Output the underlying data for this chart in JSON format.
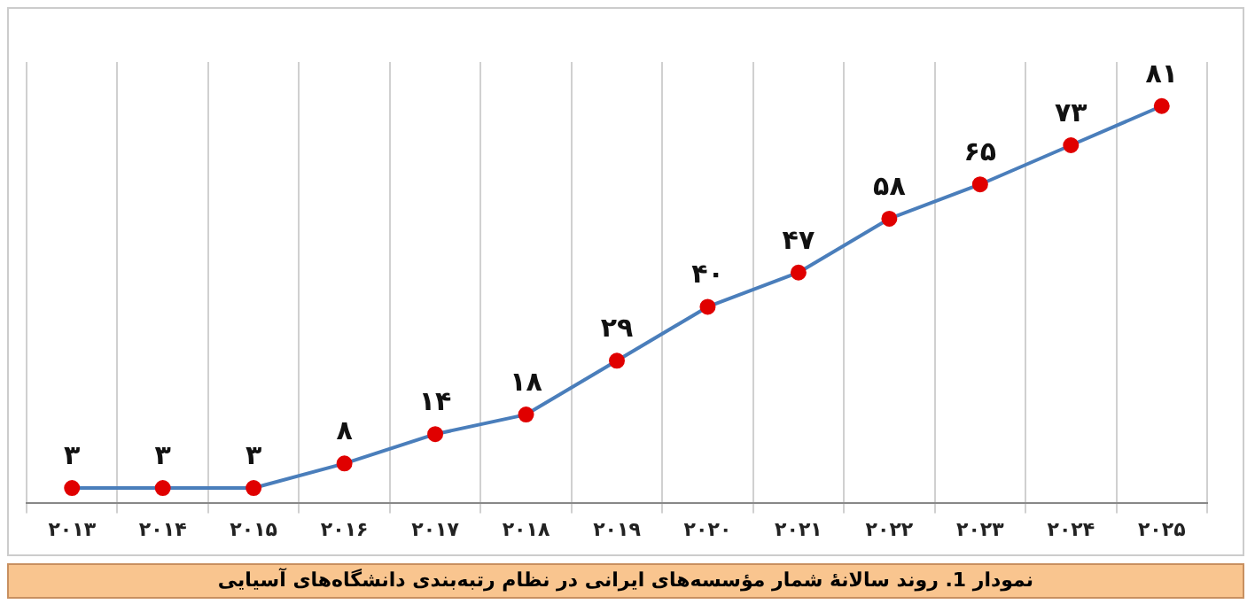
{
  "chart_data": {
    "type": "line",
    "categories": [
      "۲۰۱۳",
      "۲۰۱۴",
      "۲۰۱۵",
      "۲۰۱۶",
      "۲۰۱۷",
      "۲۰۱۸",
      "۲۰۱۹",
      "۲۰۲۰",
      "۲۰۲۱",
      "۲۰۲۲",
      "۲۰۲۳",
      "۲۰۲۴",
      "۲۰۲۵"
    ],
    "series": [
      {
        "color": "#4a7ebb",
        "values": [
          3,
          3,
          3,
          8,
          14,
          18,
          29,
          40,
          47,
          58,
          65,
          73,
          81
        ],
        "value_labels": [
          "۳",
          "۳",
          "۳",
          "۸",
          "۱۴",
          "۱۸",
          "۲۹",
          "۴۰",
          "۴۷",
          "۵۸",
          "۶۵",
          "۷۳",
          "۸۱"
        ]
      }
    ],
    "marker": "circle",
    "grid": "x",
    "tick_labels": "x",
    "annotations": [
      "نمودار 1. روند سالانۀ شمار مؤسسه‌های ایرانی در نظام رتبه‌بندی دانشگاه‌های آسیایی"
    ]
  }
}
